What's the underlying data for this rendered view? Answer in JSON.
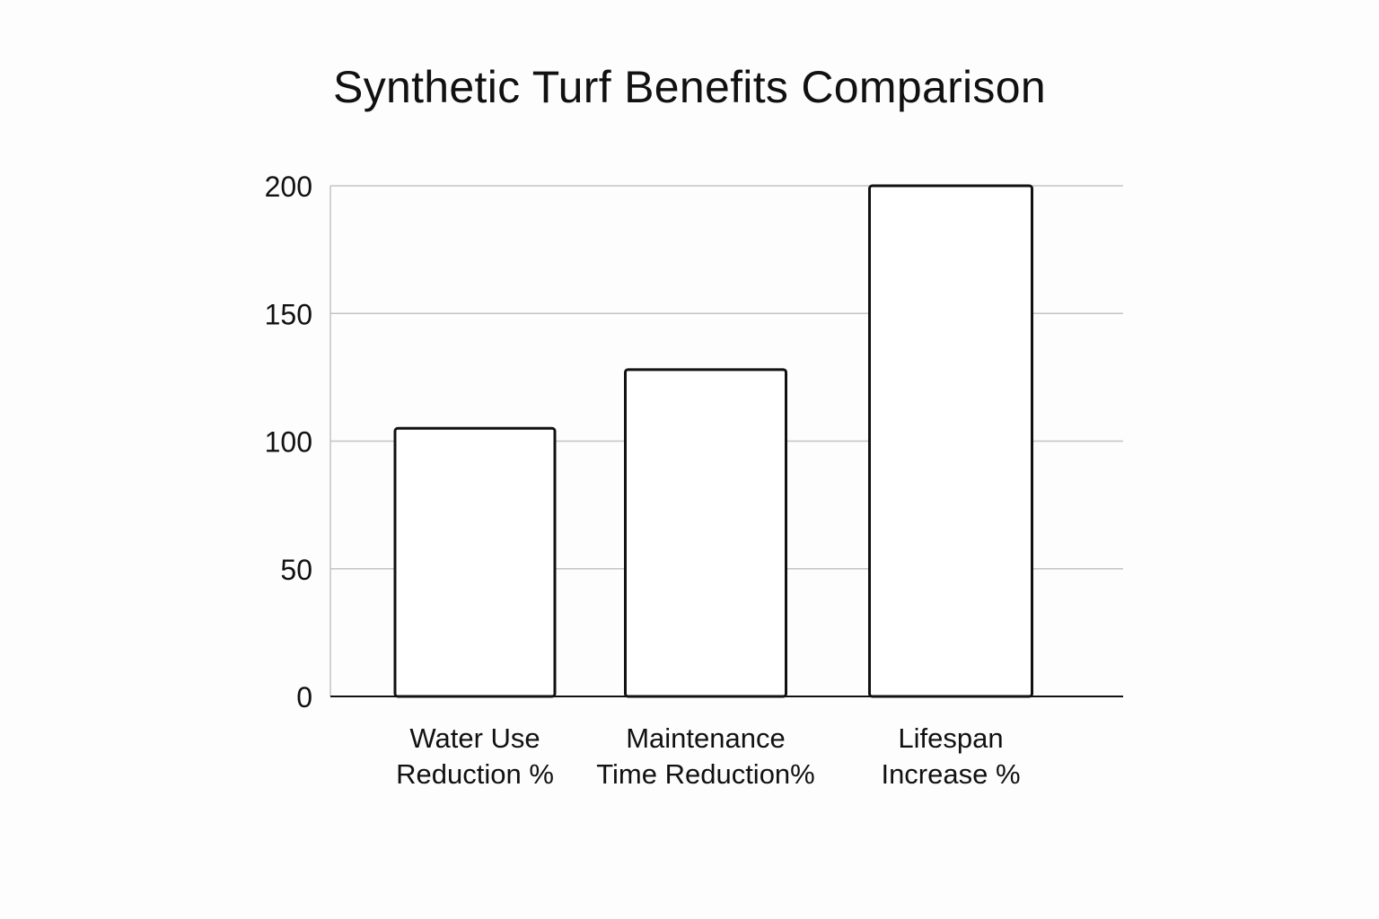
{
  "chart_data": {
    "type": "bar",
    "title": "Synthetic Turf Benefits Comparison",
    "xlabel": "",
    "ylabel": "",
    "categories": [
      [
        "Water Use",
        "Reduction %"
      ],
      [
        "Maintenance",
        "Time Reduction%"
      ],
      [
        "Lifespan",
        "Increase %"
      ]
    ],
    "values": [
      105,
      128,
      200
    ],
    "ylim": [
      0,
      200
    ],
    "yticks": [
      0,
      50,
      100,
      150,
      200
    ],
    "grid": true,
    "legend": "none",
    "colors": {
      "bar_fill": "#ffffff",
      "bar_stroke": "#111111",
      "grid": "#c4c4c4",
      "text": "#111111"
    }
  }
}
